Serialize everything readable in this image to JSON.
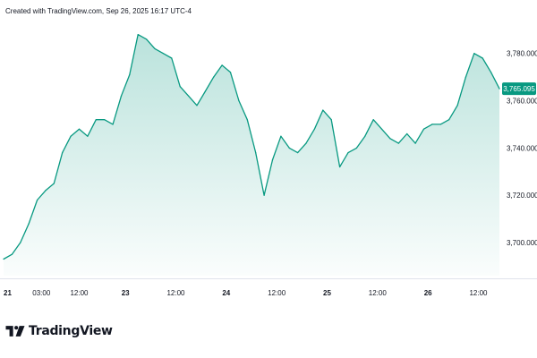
{
  "header": {
    "caption": "Created with TradingView.com, Sep 26, 2025 16:17 UTC-4"
  },
  "brand": {
    "name": "TradingView",
    "logo_icon": "tradingview-logo-icon"
  },
  "colors": {
    "line": "#089981",
    "fill_top": "#089981",
    "price_badge": "#089981",
    "text": "#131722",
    "axis_border": "#e0e3eb"
  },
  "chart_data": {
    "type": "area",
    "title": "",
    "xlabel": "",
    "ylabel": "",
    "ylim": [
      3686,
      3792
    ],
    "grid": false,
    "last_price": 3765.095,
    "last_price_label": "3,765.095",
    "y_ticks": [
      {
        "value": 3700,
        "label": "3,700.000"
      },
      {
        "value": 3720,
        "label": "3,720.000"
      },
      {
        "value": 3740,
        "label": "3,740.000"
      },
      {
        "value": 3760,
        "label": "3,760.000"
      },
      {
        "value": 3780,
        "label": "3,780.000"
      }
    ],
    "x_ticks": [
      {
        "t": 0,
        "label": "21",
        "major": true
      },
      {
        "t": 9,
        "label": "03:00",
        "major": false
      },
      {
        "t": 18,
        "label": "12:00",
        "major": false
      },
      {
        "t": 29,
        "label": "23",
        "major": true
      },
      {
        "t": 41,
        "label": "12:00",
        "major": false
      },
      {
        "t": 53,
        "label": "24",
        "major": true
      },
      {
        "t": 65,
        "label": "12:00",
        "major": false
      },
      {
        "t": 77,
        "label": "25",
        "major": true
      },
      {
        "t": 89,
        "label": "12:00",
        "major": false
      },
      {
        "t": 101,
        "label": "26",
        "major": true
      },
      {
        "t": 113,
        "label": "12:00",
        "major": false
      }
    ],
    "x_range": [
      0,
      118
    ],
    "x": [
      0,
      2,
      4,
      6,
      8,
      10,
      12,
      14,
      16,
      18,
      20,
      22,
      24,
      26,
      28,
      30,
      32,
      34,
      36,
      38,
      40,
      42,
      44,
      46,
      48,
      50,
      52,
      54,
      56,
      58,
      60,
      62,
      64,
      66,
      68,
      70,
      72,
      74,
      76,
      78,
      80,
      82,
      84,
      86,
      88,
      90,
      92,
      94,
      96,
      98,
      100,
      102,
      104,
      106,
      108,
      110,
      112,
      114,
      116,
      118
    ],
    "values": [
      3693,
      3695,
      3700,
      3708,
      3718,
      3722,
      3725,
      3738,
      3745,
      3748,
      3745,
      3752,
      3752,
      3750,
      3762,
      3771,
      3788,
      3786,
      3782,
      3780,
      3778,
      3766,
      3762,
      3758,
      3764,
      3770,
      3775,
      3772,
      3760,
      3752,
      3738,
      3720,
      3735,
      3745,
      3740,
      3738,
      3742,
      3748,
      3756,
      3752,
      3732,
      3738,
      3740,
      3745,
      3752,
      3748,
      3744,
      3742,
      3746,
      3742,
      3748,
      3750,
      3750,
      3752,
      3758,
      3770,
      3780,
      3778,
      3772,
      3765.095
    ]
  }
}
